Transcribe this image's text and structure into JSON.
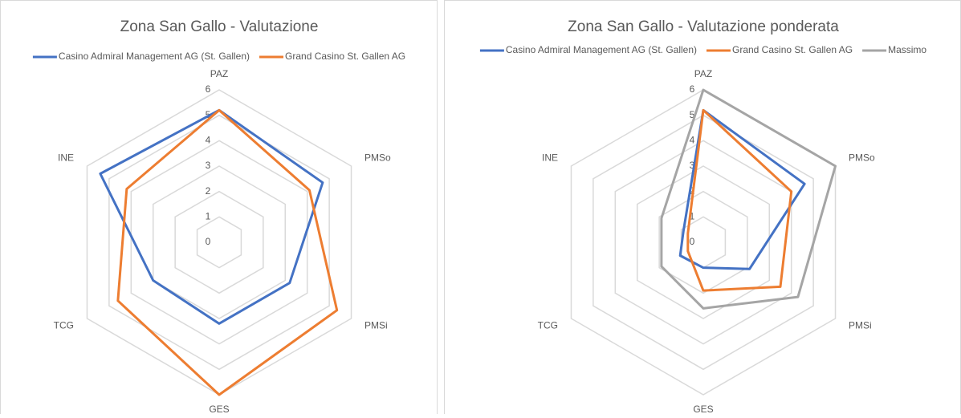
{
  "chart_data": [
    {
      "type": "radar",
      "title": "Zona San Gallo - Valutazione",
      "categories": [
        "PAZ",
        "PMSo",
        "PMSi",
        "GES",
        "TCG",
        "INE"
      ],
      "series": [
        {
          "name": "Casino Admiral Management AG (St. Gallen)",
          "color": "#4472c4",
          "values": [
            5.2,
            4.7,
            3.2,
            3.2,
            3.0,
            5.4
          ]
        },
        {
          "name": "Grand Casino St. Gallen AG",
          "color": "#ed7d31",
          "values": [
            5.2,
            4.1,
            5.35,
            6.0,
            4.6,
            4.2
          ]
        }
      ],
      "ylim": [
        0,
        6
      ],
      "yticks": [
        0,
        1,
        2,
        3,
        4,
        5,
        6
      ],
      "grid": true
    },
    {
      "type": "radar",
      "title": "Zona San Gallo - Valutazione ponderata",
      "categories": [
        "PAZ",
        "PMSo",
        "PMSi",
        "GES",
        "TCG",
        "INE"
      ],
      "series": [
        {
          "name": "Casino Admiral Management AG (St. Gallen)",
          "color": "#4472c4",
          "values": [
            5.2,
            4.6,
            2.1,
            1.0,
            1.05,
            0.9
          ]
        },
        {
          "name": "Grand Casino St. Gallen AG",
          "color": "#ed7d31",
          "values": [
            5.2,
            4.0,
            3.5,
            1.9,
            0.7,
            0.7
          ]
        },
        {
          "name": "Massimo",
          "color": "#a5a5a5",
          "values": [
            6.0,
            6.0,
            4.3,
            2.6,
            1.9,
            1.9
          ]
        }
      ],
      "ylim": [
        0,
        6
      ],
      "yticks": [
        0,
        1,
        2,
        3,
        4,
        5,
        6
      ],
      "grid": true
    }
  ]
}
